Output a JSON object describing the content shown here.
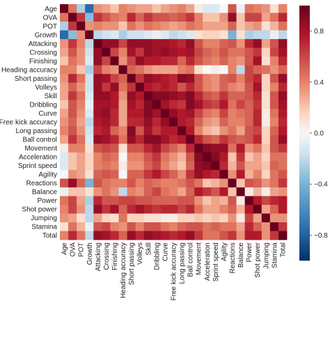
{
  "chart_data": {
    "type": "heatmap",
    "title": "",
    "xlabel": "",
    "ylabel": "",
    "labels": [
      "Age",
      "OVA",
      "POT",
      "Growth",
      "Attacking",
      "Crossing",
      "Finishing",
      "Heading accuracy",
      "Short passing",
      "Volleys",
      "Skill",
      "Dribbling",
      "Curve",
      "Free kick accuracy",
      "Long passing",
      "Ball control",
      "Movement",
      "Acceleration",
      "Sprint speed",
      "Agility",
      "Reactions",
      "Balance",
      "Power",
      "Shot power",
      "Jumping",
      "Stamina",
      "Total"
    ],
    "colorbar": {
      "min": -1.0,
      "max": 1.0,
      "ticks": [
        0.8,
        0.4,
        0.0,
        -0.4,
        -0.8
      ],
      "tick_labels": [
        "0.8",
        "0.4",
        "0.0",
        "−0.4",
        "−0.8"
      ]
    },
    "colors": {
      "negative": "#2a6aac",
      "neutral": "#f7f7f7",
      "positive": "#b2182b",
      "deep_positive": "#67001f",
      "deep_negative": "#053061"
    },
    "values": [
      [
        1.0,
        0.45,
        -0.25,
        -0.75,
        0.35,
        0.3,
        0.2,
        0.4,
        0.35,
        0.3,
        0.3,
        0.2,
        0.3,
        0.35,
        0.4,
        0.3,
        0.05,
        -0.1,
        -0.1,
        0.0,
        0.55,
        -0.05,
        0.45,
        0.4,
        0.35,
        0.1,
        0.4
      ],
      [
        0.45,
        1.0,
        0.65,
        -0.35,
        0.65,
        0.55,
        0.45,
        0.4,
        0.7,
        0.5,
        0.65,
        0.55,
        0.55,
        0.5,
        0.55,
        0.65,
        0.4,
        0.2,
        0.2,
        0.35,
        0.85,
        0.2,
        0.6,
        0.6,
        0.3,
        0.45,
        0.7
      ],
      [
        -0.25,
        0.65,
        1.0,
        0.35,
        0.4,
        0.35,
        0.35,
        0.2,
        0.45,
        0.35,
        0.45,
        0.4,
        0.35,
        0.3,
        0.35,
        0.45,
        0.4,
        0.3,
        0.3,
        0.3,
        0.5,
        0.2,
        0.3,
        0.35,
        0.1,
        0.25,
        0.45
      ],
      [
        -0.75,
        -0.35,
        0.35,
        1.0,
        -0.2,
        -0.15,
        -0.1,
        -0.25,
        -0.15,
        -0.15,
        -0.1,
        -0.05,
        -0.1,
        -0.2,
        -0.15,
        -0.1,
        0.1,
        0.15,
        0.15,
        0.1,
        -0.4,
        0.1,
        -0.25,
        -0.2,
        -0.2,
        -0.05,
        -0.2
      ],
      [
        0.35,
        0.65,
        0.4,
        -0.2,
        1.0,
        0.85,
        0.85,
        0.6,
        0.85,
        0.85,
        0.85,
        0.8,
        0.8,
        0.75,
        0.7,
        0.85,
        0.55,
        0.4,
        0.4,
        0.5,
        0.55,
        0.35,
        0.7,
        0.85,
        0.3,
        0.55,
        0.85
      ],
      [
        0.3,
        0.55,
        0.35,
        -0.15,
        0.85,
        1.0,
        0.6,
        0.4,
        0.8,
        0.65,
        0.85,
        0.8,
        0.85,
        0.8,
        0.75,
        0.8,
        0.6,
        0.5,
        0.45,
        0.55,
        0.45,
        0.45,
        0.55,
        0.65,
        0.15,
        0.6,
        0.8
      ],
      [
        0.2,
        0.45,
        0.35,
        -0.1,
        0.85,
        0.6,
        1.0,
        0.35,
        0.6,
        0.85,
        0.75,
        0.75,
        0.7,
        0.7,
        0.5,
        0.7,
        0.55,
        0.45,
        0.4,
        0.5,
        0.4,
        0.35,
        0.55,
        0.8,
        0.1,
        0.4,
        0.7
      ],
      [
        0.4,
        0.4,
        0.2,
        -0.25,
        0.6,
        0.4,
        0.35,
        1.0,
        0.5,
        0.45,
        0.35,
        0.3,
        0.3,
        0.3,
        0.4,
        0.45,
        0.1,
        0.0,
        0.05,
        0.0,
        0.4,
        -0.2,
        0.6,
        0.5,
        0.45,
        0.35,
        0.5
      ],
      [
        0.35,
        0.7,
        0.45,
        -0.15,
        0.85,
        0.8,
        0.6,
        0.5,
        1.0,
        0.65,
        0.85,
        0.8,
        0.75,
        0.7,
        0.9,
        0.85,
        0.55,
        0.4,
        0.35,
        0.5,
        0.55,
        0.4,
        0.6,
        0.7,
        0.15,
        0.55,
        0.85
      ],
      [
        0.3,
        0.5,
        0.35,
        -0.15,
        0.85,
        0.65,
        0.85,
        0.45,
        0.65,
        1.0,
        0.75,
        0.7,
        0.75,
        0.7,
        0.55,
        0.7,
        0.55,
        0.4,
        0.35,
        0.5,
        0.4,
        0.35,
        0.55,
        0.8,
        0.15,
        0.4,
        0.7
      ],
      [
        0.3,
        0.65,
        0.45,
        -0.1,
        0.85,
        0.85,
        0.75,
        0.35,
        0.85,
        0.75,
        1.0,
        0.9,
        0.9,
        0.85,
        0.8,
        0.9,
        0.7,
        0.55,
        0.5,
        0.65,
        0.5,
        0.5,
        0.55,
        0.7,
        0.1,
        0.55,
        0.85
      ],
      [
        0.2,
        0.55,
        0.4,
        -0.05,
        0.8,
        0.8,
        0.75,
        0.3,
        0.8,
        0.7,
        0.9,
        1.0,
        0.8,
        0.7,
        0.65,
        0.9,
        0.8,
        0.65,
        0.6,
        0.75,
        0.45,
        0.6,
        0.5,
        0.65,
        0.1,
        0.55,
        0.8
      ],
      [
        0.3,
        0.55,
        0.35,
        -0.1,
        0.8,
        0.85,
        0.7,
        0.3,
        0.75,
        0.75,
        0.9,
        0.8,
        1.0,
        0.85,
        0.75,
        0.8,
        0.6,
        0.45,
        0.4,
        0.6,
        0.4,
        0.45,
        0.5,
        0.7,
        0.05,
        0.45,
        0.75
      ],
      [
        0.35,
        0.5,
        0.3,
        -0.2,
        0.75,
        0.8,
        0.7,
        0.3,
        0.7,
        0.7,
        0.85,
        0.7,
        0.85,
        1.0,
        0.75,
        0.7,
        0.5,
        0.35,
        0.3,
        0.5,
        0.4,
        0.4,
        0.5,
        0.7,
        0.05,
        0.4,
        0.7
      ],
      [
        0.4,
        0.55,
        0.35,
        -0.15,
        0.7,
        0.75,
        0.5,
        0.4,
        0.9,
        0.55,
        0.8,
        0.65,
        0.75,
        0.75,
        1.0,
        0.75,
        0.4,
        0.25,
        0.2,
        0.35,
        0.45,
        0.3,
        0.55,
        0.6,
        0.15,
        0.5,
        0.75
      ],
      [
        0.3,
        0.65,
        0.45,
        -0.1,
        0.85,
        0.8,
        0.7,
        0.45,
        0.85,
        0.7,
        0.9,
        0.9,
        0.8,
        0.7,
        0.75,
        1.0,
        0.7,
        0.55,
        0.5,
        0.65,
        0.55,
        0.5,
        0.55,
        0.7,
        0.15,
        0.55,
        0.85
      ],
      [
        0.05,
        0.4,
        0.4,
        0.1,
        0.55,
        0.6,
        0.55,
        0.1,
        0.55,
        0.55,
        0.7,
        0.8,
        0.6,
        0.5,
        0.4,
        0.7,
        1.0,
        0.9,
        0.85,
        0.85,
        0.45,
        0.75,
        0.35,
        0.45,
        0.2,
        0.55,
        0.65
      ],
      [
        -0.1,
        0.2,
        0.3,
        0.15,
        0.4,
        0.5,
        0.45,
        0.0,
        0.4,
        0.4,
        0.55,
        0.65,
        0.45,
        0.35,
        0.25,
        0.55,
        0.9,
        1.0,
        0.9,
        0.75,
        0.2,
        0.65,
        0.2,
        0.3,
        0.15,
        0.45,
        0.45
      ],
      [
        -0.1,
        0.2,
        0.3,
        0.15,
        0.4,
        0.45,
        0.4,
        0.05,
        0.35,
        0.35,
        0.5,
        0.6,
        0.4,
        0.3,
        0.2,
        0.5,
        0.85,
        0.9,
        1.0,
        0.7,
        0.25,
        0.55,
        0.3,
        0.3,
        0.2,
        0.5,
        0.45
      ],
      [
        0.0,
        0.35,
        0.3,
        0.1,
        0.5,
        0.55,
        0.5,
        0.0,
        0.5,
        0.5,
        0.65,
        0.75,
        0.6,
        0.5,
        0.35,
        0.65,
        0.85,
        0.75,
        0.7,
        1.0,
        0.35,
        0.75,
        0.25,
        0.4,
        0.15,
        0.45,
        0.55
      ],
      [
        0.55,
        0.85,
        0.5,
        -0.4,
        0.55,
        0.45,
        0.4,
        0.4,
        0.55,
        0.4,
        0.5,
        0.45,
        0.4,
        0.4,
        0.45,
        0.55,
        0.45,
        0.2,
        0.25,
        0.35,
        1.0,
        0.2,
        0.55,
        0.5,
        0.35,
        0.45,
        0.65
      ],
      [
        -0.05,
        0.2,
        0.2,
        0.1,
        0.35,
        0.45,
        0.35,
        -0.2,
        0.4,
        0.35,
        0.5,
        0.6,
        0.45,
        0.4,
        0.3,
        0.5,
        0.75,
        0.65,
        0.55,
        0.75,
        0.2,
        1.0,
        0.05,
        0.25,
        0.05,
        0.3,
        0.35
      ],
      [
        0.45,
        0.6,
        0.3,
        -0.25,
        0.7,
        0.55,
        0.55,
        0.6,
        0.6,
        0.55,
        0.55,
        0.5,
        0.5,
        0.5,
        0.55,
        0.55,
        0.35,
        0.2,
        0.3,
        0.25,
        0.55,
        0.05,
        1.0,
        0.75,
        0.6,
        0.7,
        0.75
      ],
      [
        0.4,
        0.6,
        0.35,
        -0.2,
        0.85,
        0.65,
        0.8,
        0.5,
        0.7,
        0.8,
        0.7,
        0.65,
        0.7,
        0.7,
        0.6,
        0.7,
        0.45,
        0.3,
        0.3,
        0.4,
        0.5,
        0.25,
        0.75,
        1.0,
        0.3,
        0.5,
        0.75
      ],
      [
        0.35,
        0.3,
        0.1,
        -0.2,
        0.3,
        0.15,
        0.1,
        0.45,
        0.15,
        0.15,
        0.1,
        0.1,
        0.05,
        0.05,
        0.15,
        0.15,
        0.2,
        0.15,
        0.2,
        0.15,
        0.35,
        0.05,
        0.6,
        0.3,
        1.0,
        0.35,
        0.35
      ],
      [
        0.1,
        0.45,
        0.25,
        -0.05,
        0.55,
        0.6,
        0.4,
        0.35,
        0.55,
        0.4,
        0.55,
        0.55,
        0.45,
        0.4,
        0.5,
        0.55,
        0.55,
        0.45,
        0.5,
        0.45,
        0.45,
        0.3,
        0.7,
        0.5,
        0.35,
        1.0,
        0.65
      ],
      [
        0.4,
        0.7,
        0.45,
        -0.2,
        0.85,
        0.8,
        0.7,
        0.5,
        0.85,
        0.7,
        0.85,
        0.8,
        0.75,
        0.7,
        0.75,
        0.85,
        0.65,
        0.45,
        0.45,
        0.55,
        0.65,
        0.35,
        0.75,
        0.75,
        0.35,
        0.65,
        1.0
      ]
    ]
  }
}
